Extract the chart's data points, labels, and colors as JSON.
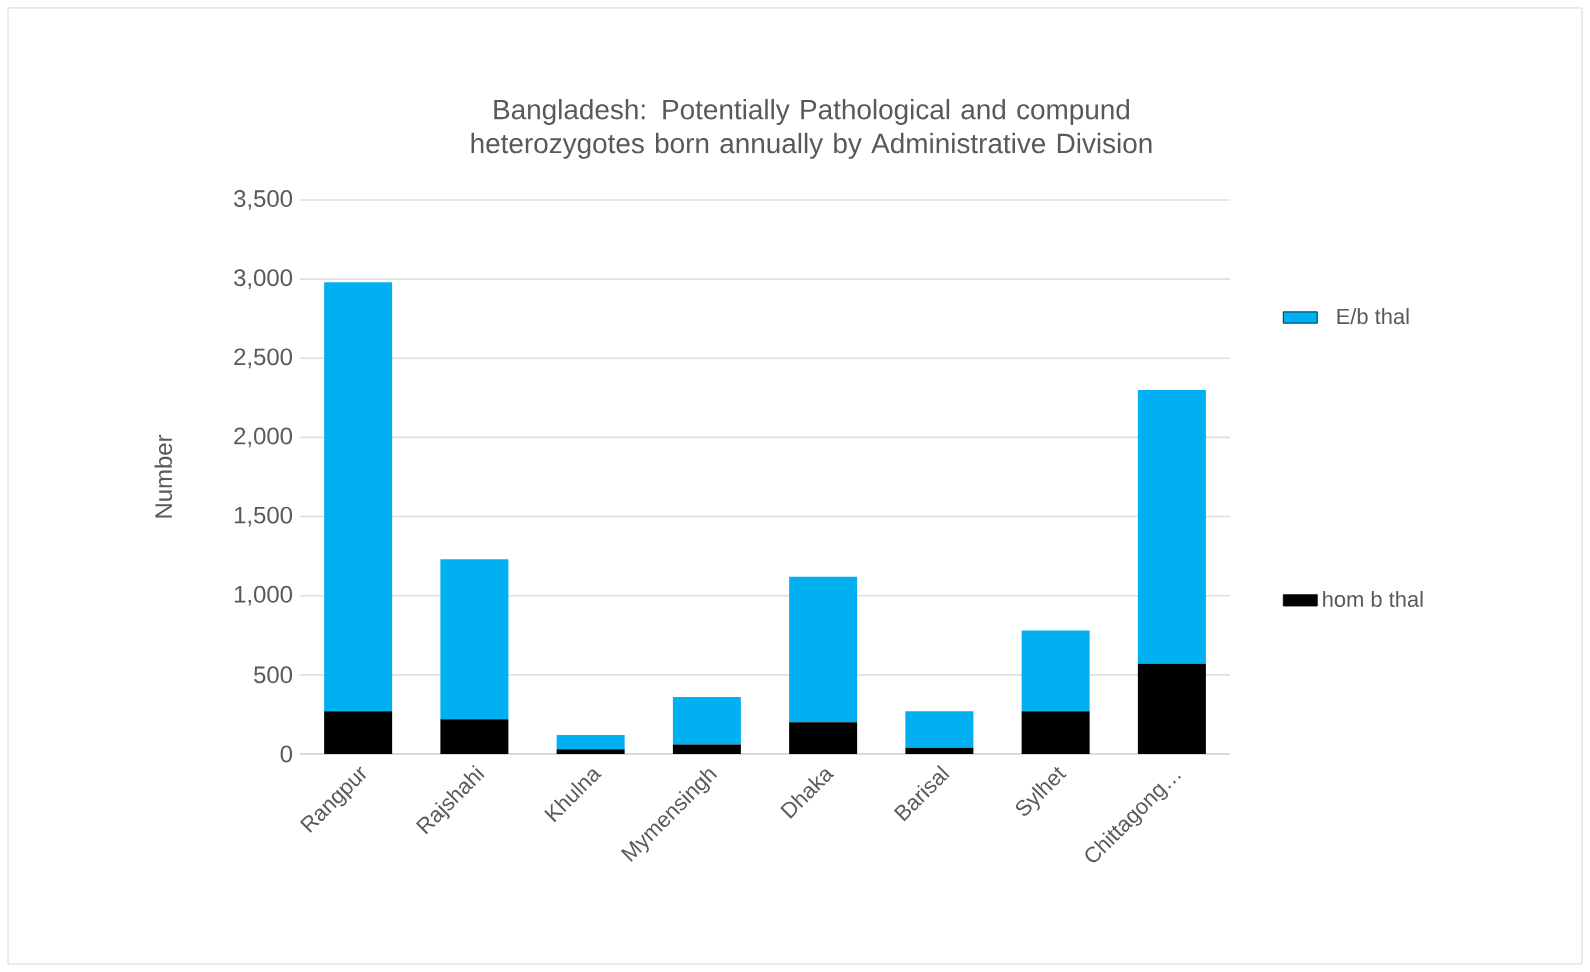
{
  "chart_data": {
    "type": "bar",
    "title": "Bangladesh: Potentially Pathological and compund heterozygotes born annually by Administrative Division",
    "ylabel": "Number",
    "categories": [
      "Rangpur",
      "Rajshahi",
      "Khulna",
      "Mymensingh",
      "Dhaka",
      "Barisal",
      "Sylhet",
      "Chittagong…"
    ],
    "stacked": true,
    "series": [
      {
        "name": "hom b thal",
        "color": "#000000",
        "values": [
          270,
          220,
          30,
          60,
          200,
          40,
          270,
          570
        ]
      },
      {
        "name": "E/b thal",
        "color": "#00b0f0",
        "values": [
          2710,
          1010,
          90,
          300,
          920,
          230,
          510,
          1730
        ]
      }
    ],
    "ylim": [
      0,
      3500
    ],
    "yticks": [
      0,
      500,
      {
        "value": 1000,
        "label": "1,000"
      },
      {
        "value": 1500,
        "label": "1,500"
      },
      {
        "value": 2000,
        "label": "2,000"
      },
      {
        "value": 2500,
        "label": "2,500"
      },
      {
        "value": 3000,
        "label": "3,000"
      },
      {
        "value": 3500,
        "label": "3,500"
      }
    ],
    "grid": "y",
    "legend": "right"
  }
}
